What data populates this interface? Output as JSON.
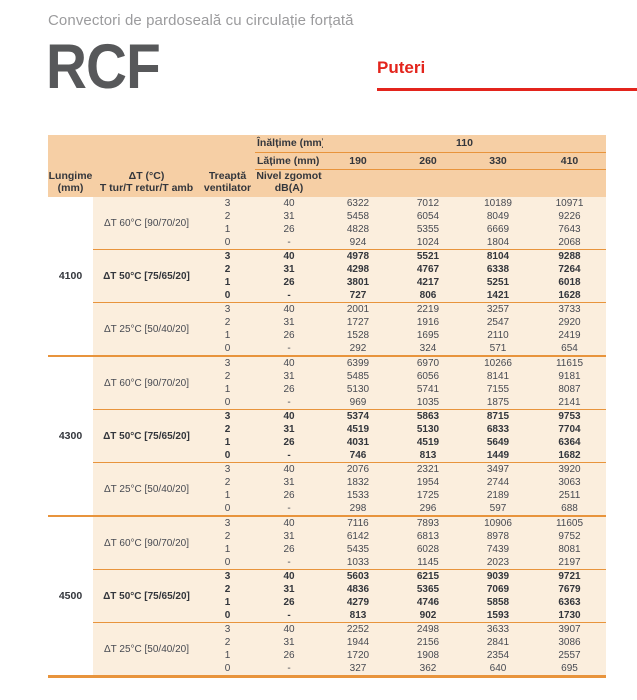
{
  "colors": {
    "accent_red": "#e3241c",
    "header_bg": "#f6cfa5",
    "body_bg": "#fbeedd",
    "rule_orange": "#e8943c",
    "title_gray": "#57585a",
    "subtitle_gray": "#9b9b9d",
    "text": "#474a52"
  },
  "header": {
    "subtitle": "Convectori de pardoseală cu circulație forțată",
    "product_code": "RCF",
    "section_label": "Puteri"
  },
  "table": {
    "inaltime_label": "Înălțime (mm)",
    "inaltime_value": "110",
    "latime_label": "Lățime (mm)",
    "latime_values": [
      "190",
      "260",
      "330",
      "410"
    ],
    "col_headers": [
      [
        "Lungime",
        "(mm)"
      ],
      [
        "ΔT (°C)",
        "T tur/T retur/T amb"
      ],
      [
        "Treaptă",
        "ventilator"
      ],
      [
        "Nivel zgomot",
        "dB(A)"
      ]
    ],
    "groups": [
      {
        "lungime": "4100",
        "sections": [
          {
            "dt_label": "ΔT 60°C [90/70/20]",
            "bold": false,
            "rows": [
              {
                "treapta": "3",
                "zgomot": "40",
                "values": [
                  6322,
                  7012,
                  10189,
                  10971
                ]
              },
              {
                "treapta": "2",
                "zgomot": "31",
                "values": [
                  5458,
                  6054,
                  8049,
                  9226
                ]
              },
              {
                "treapta": "1",
                "zgomot": "26",
                "values": [
                  4828,
                  5355,
                  6669,
                  7643
                ]
              },
              {
                "treapta": "0",
                "zgomot": "-",
                "values": [
                  924,
                  1024,
                  1804,
                  2068
                ]
              }
            ]
          },
          {
            "dt_label": "ΔT 50°C [75/65/20]",
            "bold": true,
            "rows": [
              {
                "treapta": "3",
                "zgomot": "40",
                "values": [
                  4978,
                  5521,
                  8104,
                  9288
                ]
              },
              {
                "treapta": "2",
                "zgomot": "31",
                "values": [
                  4298,
                  4767,
                  6338,
                  7264
                ]
              },
              {
                "treapta": "1",
                "zgomot": "26",
                "values": [
                  3801,
                  4217,
                  5251,
                  6018
                ]
              },
              {
                "treapta": "0",
                "zgomot": "-",
                "values": [
                  727,
                  806,
                  1421,
                  1628
                ]
              }
            ]
          },
          {
            "dt_label": "ΔT 25°C [50/40/20]",
            "bold": false,
            "rows": [
              {
                "treapta": "3",
                "zgomot": "40",
                "values": [
                  2001,
                  2219,
                  3257,
                  3733
                ]
              },
              {
                "treapta": "2",
                "zgomot": "31",
                "values": [
                  1727,
                  1916,
                  2547,
                  2920
                ]
              },
              {
                "treapta": "1",
                "zgomot": "26",
                "values": [
                  1528,
                  1695,
                  2110,
                  2419
                ]
              },
              {
                "treapta": "0",
                "zgomot": "-",
                "values": [
                  292,
                  324,
                  571,
                  654
                ]
              }
            ]
          }
        ]
      },
      {
        "lungime": "4300",
        "sections": [
          {
            "dt_label": "ΔT 60°C [90/70/20]",
            "bold": false,
            "rows": [
              {
                "treapta": "3",
                "zgomot": "40",
                "values": [
                  6399,
                  6970,
                  10266,
                  11615
                ]
              },
              {
                "treapta": "2",
                "zgomot": "31",
                "values": [
                  5485,
                  6056,
                  8141,
                  9181
                ]
              },
              {
                "treapta": "1",
                "zgomot": "26",
                "values": [
                  5130,
                  5741,
                  7155,
                  8087
                ]
              },
              {
                "treapta": "0",
                "zgomot": "-",
                "values": [
                  969,
                  1035,
                  1875,
                  2141
                ]
              }
            ]
          },
          {
            "dt_label": "ΔT 50°C [75/65/20]",
            "bold": true,
            "rows": [
              {
                "treapta": "3",
                "zgomot": "40",
                "values": [
                  5374,
                  5863,
                  8715,
                  9753
                ]
              },
              {
                "treapta": "2",
                "zgomot": "31",
                "values": [
                  4519,
                  5130,
                  6833,
                  7704
                ]
              },
              {
                "treapta": "1",
                "zgomot": "26",
                "values": [
                  4031,
                  4519,
                  5649,
                  6364
                ]
              },
              {
                "treapta": "0",
                "zgomot": "-",
                "values": [
                  746,
                  813,
                  1449,
                  1682
                ]
              }
            ]
          },
          {
            "dt_label": "ΔT 25°C [50/40/20]",
            "bold": false,
            "rows": [
              {
                "treapta": "3",
                "zgomot": "40",
                "values": [
                  2076,
                  2321,
                  3497,
                  3920
                ]
              },
              {
                "treapta": "2",
                "zgomot": "31",
                "values": [
                  1832,
                  1954,
                  2744,
                  3063
                ]
              },
              {
                "treapta": "1",
                "zgomot": "26",
                "values": [
                  1533,
                  1725,
                  2189,
                  2511
                ]
              },
              {
                "treapta": "0",
                "zgomot": "-",
                "values": [
                  298,
                  296,
                  597,
                  688
                ]
              }
            ]
          }
        ]
      },
      {
        "lungime": "4500",
        "sections": [
          {
            "dt_label": "ΔT 60°C [90/70/20]",
            "bold": false,
            "rows": [
              {
                "treapta": "3",
                "zgomot": "40",
                "values": [
                  7116,
                  7893,
                  10906,
                  11605
                ]
              },
              {
                "treapta": "2",
                "zgomot": "31",
                "values": [
                  6142,
                  6813,
                  8978,
                  9752
                ]
              },
              {
                "treapta": "1",
                "zgomot": "26",
                "values": [
                  5435,
                  6028,
                  7439,
                  8081
                ]
              },
              {
                "treapta": "0",
                "zgomot": "-",
                "values": [
                  1033,
                  1145,
                  2023,
                  2197
                ]
              }
            ]
          },
          {
            "dt_label": "ΔT 50°C [75/65/20]",
            "bold": true,
            "rows": [
              {
                "treapta": "3",
                "zgomot": "40",
                "values": [
                  5603,
                  6215,
                  9039,
                  9721
                ]
              },
              {
                "treapta": "2",
                "zgomot": "31",
                "values": [
                  4836,
                  5365,
                  7069,
                  7679
                ]
              },
              {
                "treapta": "1",
                "zgomot": "26",
                "values": [
                  4279,
                  4746,
                  5858,
                  6363
                ]
              },
              {
                "treapta": "0",
                "zgomot": "-",
                "values": [
                  813,
                  902,
                  1593,
                  1730
                ]
              }
            ]
          },
          {
            "dt_label": "ΔT 25°C [50/40/20]",
            "bold": false,
            "rows": [
              {
                "treapta": "3",
                "zgomot": "40",
                "values": [
                  2252,
                  2498,
                  3633,
                  3907
                ]
              },
              {
                "treapta": "2",
                "zgomot": "31",
                "values": [
                  1944,
                  2156,
                  2841,
                  3086
                ]
              },
              {
                "treapta": "1",
                "zgomot": "26",
                "values": [
                  1720,
                  1908,
                  2354,
                  2557
                ]
              },
              {
                "treapta": "0",
                "zgomot": "-",
                "values": [
                  327,
                  362,
                  640,
                  695
                ]
              }
            ]
          }
        ]
      }
    ]
  }
}
